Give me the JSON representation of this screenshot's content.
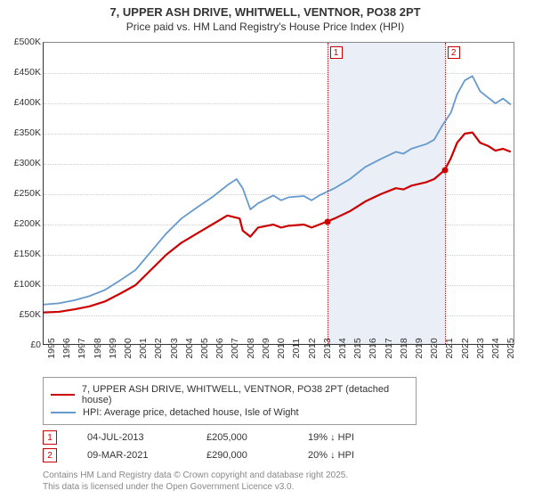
{
  "title": "7, UPPER ASH DRIVE, WHITWELL, VENTNOR, PO38 2PT",
  "subtitle": "Price paid vs. HM Land Registry's House Price Index (HPI)",
  "chart": {
    "type": "line",
    "background_color": "#ffffff",
    "grid_color": "#cccccc",
    "xlim": [
      1995,
      2025.8
    ],
    "ylim": [
      0,
      500000
    ],
    "ytick_step": 50000,
    "ytick_labels": [
      "£0",
      "£50K",
      "£100K",
      "£150K",
      "£200K",
      "£250K",
      "£300K",
      "£350K",
      "£400K",
      "£450K",
      "£500K"
    ],
    "xtick_step": 1,
    "xtick_labels": [
      "1995",
      "1996",
      "1997",
      "1998",
      "1999",
      "2000",
      "2001",
      "2002",
      "2003",
      "2004",
      "2005",
      "2006",
      "2007",
      "2008",
      "2009",
      "2010",
      "2011",
      "2012",
      "2013",
      "2014",
      "2015",
      "2016",
      "2017",
      "2018",
      "2019",
      "2020",
      "2021",
      "2022",
      "2023",
      "2024",
      "2025"
    ],
    "series": [
      {
        "name": "7, UPPER ASH DRIVE, WHITWELL, VENTNOR, PO38 2PT (detached house)",
        "color": "#cc0000",
        "line_width": 2.2,
        "points": [
          [
            1995,
            55000
          ],
          [
            1996,
            56000
          ],
          [
            1997,
            60000
          ],
          [
            1998,
            65000
          ],
          [
            1999,
            73000
          ],
          [
            2000,
            86000
          ],
          [
            2001,
            100000
          ],
          [
            2002,
            125000
          ],
          [
            2003,
            150000
          ],
          [
            2004,
            170000
          ],
          [
            2005,
            185000
          ],
          [
            2006,
            200000
          ],
          [
            2007,
            215000
          ],
          [
            2007.8,
            210000
          ],
          [
            2008,
            190000
          ],
          [
            2008.5,
            180000
          ],
          [
            2009,
            195000
          ],
          [
            2010,
            200000
          ],
          [
            2010.5,
            195000
          ],
          [
            2011,
            198000
          ],
          [
            2012,
            200000
          ],
          [
            2012.5,
            195000
          ],
          [
            2013,
            200000
          ],
          [
            2013.51,
            205000
          ],
          [
            2014,
            210000
          ],
          [
            2015,
            222000
          ],
          [
            2016,
            238000
          ],
          [
            2017,
            250000
          ],
          [
            2018,
            260000
          ],
          [
            2018.5,
            258000
          ],
          [
            2019,
            264000
          ],
          [
            2020,
            270000
          ],
          [
            2020.5,
            275000
          ],
          [
            2021.19,
            290000
          ],
          [
            2021.6,
            310000
          ],
          [
            2022,
            335000
          ],
          [
            2022.5,
            350000
          ],
          [
            2023,
            352000
          ],
          [
            2023.5,
            335000
          ],
          [
            2024,
            330000
          ],
          [
            2024.5,
            322000
          ],
          [
            2025,
            325000
          ],
          [
            2025.5,
            320000
          ]
        ],
        "markers": [
          {
            "x": 2013.51,
            "y": 205000
          },
          {
            "x": 2021.19,
            "y": 290000
          }
        ]
      },
      {
        "name": "HPI: Average price, detached house, Isle of Wight",
        "color": "#6699cc",
        "line_width": 1.8,
        "points": [
          [
            1995,
            68000
          ],
          [
            1996,
            70000
          ],
          [
            1997,
            75000
          ],
          [
            1998,
            82000
          ],
          [
            1999,
            92000
          ],
          [
            2000,
            108000
          ],
          [
            2001,
            125000
          ],
          [
            2002,
            155000
          ],
          [
            2003,
            185000
          ],
          [
            2004,
            210000
          ],
          [
            2005,
            228000
          ],
          [
            2006,
            245000
          ],
          [
            2007,
            265000
          ],
          [
            2007.6,
            275000
          ],
          [
            2008,
            260000
          ],
          [
            2008.5,
            225000
          ],
          [
            2009,
            235000
          ],
          [
            2010,
            248000
          ],
          [
            2010.5,
            240000
          ],
          [
            2011,
            245000
          ],
          [
            2012,
            247000
          ],
          [
            2012.5,
            240000
          ],
          [
            2013,
            248000
          ],
          [
            2014,
            260000
          ],
          [
            2015,
            275000
          ],
          [
            2016,
            295000
          ],
          [
            2017,
            308000
          ],
          [
            2018,
            320000
          ],
          [
            2018.5,
            317000
          ],
          [
            2019,
            325000
          ],
          [
            2020,
            333000
          ],
          [
            2020.5,
            340000
          ],
          [
            2021,
            362000
          ],
          [
            2021.6,
            385000
          ],
          [
            2022,
            415000
          ],
          [
            2022.5,
            438000
          ],
          [
            2023,
            445000
          ],
          [
            2023.5,
            420000
          ],
          [
            2024,
            410000
          ],
          [
            2024.5,
            400000
          ],
          [
            2025,
            408000
          ],
          [
            2025.5,
            398000
          ]
        ]
      }
    ],
    "vertical_bands": [
      {
        "x_from": 2013.51,
        "x_to": 2021.19,
        "color": "#e9eef7"
      }
    ],
    "vertical_markers": [
      {
        "label": "1",
        "x": 2013.51,
        "color": "#cc0000"
      },
      {
        "label": "2",
        "x": 2021.19,
        "color": "#cc0000"
      }
    ]
  },
  "legend": [
    {
      "color": "#cc0000",
      "label": "7, UPPER ASH DRIVE, WHITWELL, VENTNOR, PO38 2PT (detached house)"
    },
    {
      "color": "#6699cc",
      "label": "HPI: Average price, detached house, Isle of Wight"
    }
  ],
  "marker_table": {
    "rows": [
      {
        "num": "1",
        "date": "04-JUL-2013",
        "price": "£205,000",
        "delta": "19% ↓ HPI"
      },
      {
        "num": "2",
        "date": "09-MAR-2021",
        "price": "£290,000",
        "delta": "20% ↓ HPI"
      }
    ]
  },
  "footnote": {
    "l1": "Contains HM Land Registry data © Crown copyright and database right 2025.",
    "l2": "This data is licensed under the Open Government Licence v3.0."
  }
}
